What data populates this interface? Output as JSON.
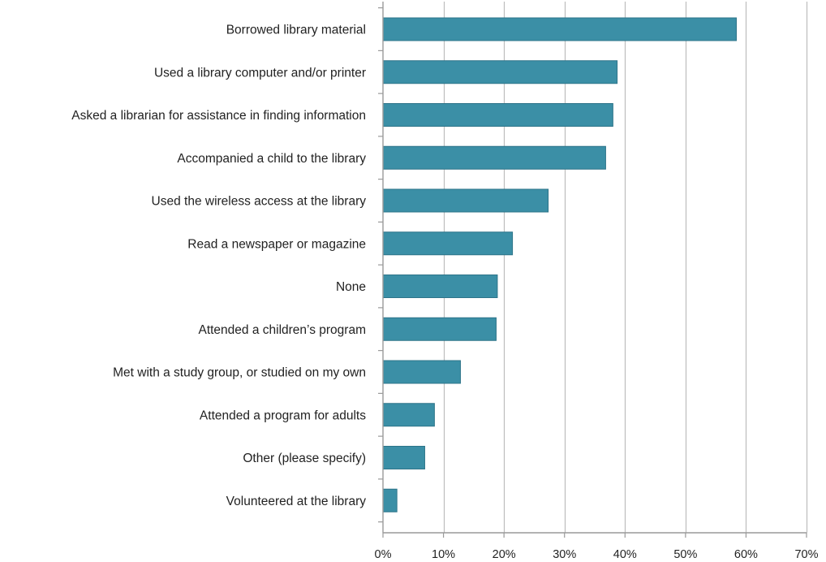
{
  "chart_data": {
    "type": "bar",
    "orientation": "horizontal",
    "categories": [
      "Borrowed library material",
      "Used a library computer and/or printer",
      "Asked a librarian for assistance in finding information",
      "Accompanied a child to the library",
      "Used the wireless access at the library",
      "Read a newspaper or magazine",
      "None",
      "Attended a children’s program",
      "Met with a study group, or studied on my own",
      "Attended a program for adults",
      "Other (please specify)",
      "Volunteered at the library"
    ],
    "values": [
      58.4,
      38.7,
      38.0,
      36.8,
      27.3,
      21.4,
      18.9,
      18.7,
      12.8,
      8.5,
      6.9,
      2.3
    ],
    "x_unit": "%",
    "xlim": [
      0,
      70
    ],
    "x_ticks": [
      0,
      10,
      20,
      30,
      40,
      50,
      60,
      70
    ],
    "x_tick_labels": [
      "0%",
      "10%",
      "20%",
      "30%",
      "40%",
      "50%",
      "60%",
      "70%"
    ],
    "title": "",
    "xlabel": "",
    "ylabel": "",
    "grid": "vertical",
    "legend": "none",
    "bar_color": "#3b8fa6",
    "bar_border_color": "#2d7489",
    "grid_color": "#bdbdbd",
    "axis_color": "#9a9a9a"
  }
}
